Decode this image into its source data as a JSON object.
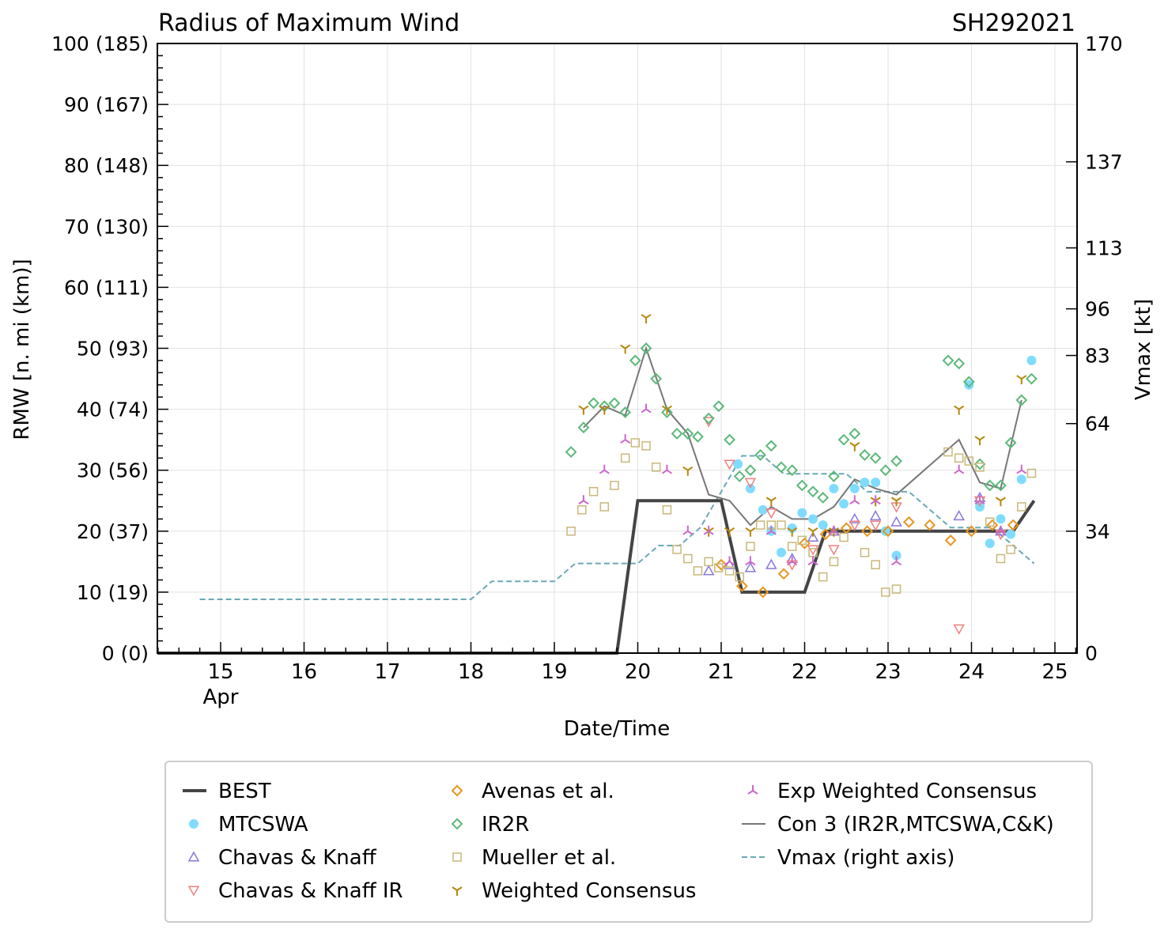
{
  "chart_data": {
    "type": "scatter",
    "title": "Radius of Maximum Wind",
    "storm_id": "SH292021",
    "xlabel": "Date/Time",
    "ylabel": "RMW [n. mi (km)]",
    "y2label": "Vmax [kt]",
    "xlim": [
      14.25,
      25.3
    ],
    "ylim": [
      0,
      100
    ],
    "xticks": [
      15,
      16,
      17,
      18,
      19,
      20,
      21,
      22,
      23,
      24,
      25
    ],
    "xtick_labels": [
      "15",
      "16",
      "17",
      "18",
      "19",
      "20",
      "21",
      "22",
      "23",
      "24",
      "25"
    ],
    "month_label": "Apr",
    "yticks": [
      0,
      10,
      20,
      30,
      40,
      50,
      60,
      70,
      80,
      90,
      100
    ],
    "ytick_labels": [
      "0 (0)",
      "10 (19)",
      "20 (37)",
      "30 (56)",
      "40 (74)",
      "50 (93)",
      "60 (111)",
      "70 (130)",
      "80 (148)",
      "90 (167)",
      "100 (185)"
    ],
    "y2lim": [
      0,
      170
    ],
    "y2ticks": [
      0,
      34,
      64,
      83,
      96,
      113,
      137,
      170
    ],
    "grid": true,
    "legend_position": "bottom",
    "series": [
      {
        "name": "BEST",
        "style": "line",
        "color": "#444444",
        "x": [
          14.0,
          19.75,
          20.0,
          21.0,
          21.25,
          22.0,
          22.25,
          24.5,
          24.75
        ],
        "y": [
          0,
          0,
          25,
          25,
          10,
          10,
          20,
          20,
          25
        ]
      },
      {
        "name": "MTCSWA",
        "style": "dot",
        "color": "#7fdcff",
        "x": [
          21.2,
          21.35,
          21.5,
          21.6,
          21.72,
          21.85,
          21.97,
          22.1,
          22.22,
          22.35,
          22.47,
          22.6,
          22.72,
          22.85,
          22.97,
          23.1,
          23.97,
          24.1,
          24.22,
          24.35,
          24.47,
          24.6,
          24.72
        ],
        "y": [
          31,
          27,
          23.5,
          20,
          16.5,
          20.5,
          23,
          22,
          21,
          27,
          24.5,
          27,
          28,
          28,
          20,
          16,
          44,
          24,
          18,
          22,
          19.5,
          28.5,
          48
        ]
      },
      {
        "name": "Chavas & Knaff",
        "style": "triangle-up",
        "color": "#8877dd",
        "x": [
          20.85,
          21.1,
          21.35,
          21.6,
          21.85,
          22.1,
          22.35,
          22.6,
          22.85,
          23.1,
          23.85,
          24.1,
          24.35
        ],
        "y": [
          13.5,
          14.5,
          14,
          14.5,
          15.5,
          19,
          20,
          22,
          22.5,
          21.5,
          22.5,
          25.5,
          20
        ]
      },
      {
        "name": "Chavas & Knaff IR",
        "style": "triangle-down",
        "color": "#f08080",
        "x": [
          20.85,
          21.1,
          21.35,
          21.6,
          21.85,
          22.1,
          22.35,
          22.6,
          22.85,
          23.1,
          23.85,
          24.1,
          24.35
        ],
        "y": [
          38,
          31,
          28,
          23,
          14.5,
          17,
          17,
          21,
          21,
          24,
          4,
          25,
          19.5
        ]
      },
      {
        "name": "Avenas et al.",
        "style": "diamond",
        "color": "#e8961e",
        "x": [
          21.0,
          21.25,
          21.5,
          21.75,
          22.0,
          22.25,
          22.5,
          22.75,
          23.0,
          23.25,
          23.5,
          23.75,
          24.0,
          24.25,
          24.5
        ],
        "y": [
          14.5,
          11,
          10,
          13,
          18,
          19.5,
          20.5,
          20,
          20,
          21.5,
          21,
          18.5,
          20,
          21,
          21
        ]
      },
      {
        "name": "IR2R",
        "style": "diamond",
        "color": "#5cb87a",
        "x": [
          19.2,
          19.35,
          19.47,
          19.6,
          19.72,
          19.85,
          19.97,
          20.1,
          20.22,
          20.35,
          20.47,
          20.6,
          20.72,
          20.85,
          20.97,
          21.1,
          21.22,
          21.35,
          21.47,
          21.6,
          21.72,
          21.85,
          21.97,
          22.1,
          22.22,
          22.35,
          22.47,
          22.6,
          22.72,
          22.85,
          22.97,
          23.1,
          23.72,
          23.85,
          23.97,
          24.1,
          24.22,
          24.35,
          24.47,
          24.6,
          24.72
        ],
        "y": [
          33,
          37,
          41,
          40.5,
          41,
          39.5,
          48,
          50,
          45,
          39.5,
          36,
          36,
          35.5,
          38.5,
          40.5,
          35,
          29,
          30,
          32.5,
          34,
          30.5,
          30,
          27.5,
          26.5,
          25.5,
          29,
          35,
          36,
          32.5,
          32,
          30,
          31.5,
          48,
          47.5,
          44.5,
          31,
          27.5,
          27.5,
          34.5,
          41.5,
          45
        ]
      },
      {
        "name": "Mueller et al.",
        "style": "square",
        "color": "#c8b87a",
        "x": [
          19.2,
          19.33,
          19.47,
          19.6,
          19.72,
          19.85,
          19.97,
          20.1,
          20.22,
          20.35,
          20.47,
          20.6,
          20.72,
          20.85,
          20.97,
          21.1,
          21.22,
          21.35,
          21.47,
          21.6,
          21.72,
          21.85,
          21.97,
          22.1,
          22.22,
          22.35,
          22.47,
          22.72,
          22.85,
          22.97,
          23.1,
          23.72,
          23.85,
          23.97,
          24.1,
          24.22,
          24.35,
          24.47,
          24.6,
          24.72
        ],
        "y": [
          20,
          23.5,
          26.5,
          24,
          27.5,
          32,
          34.5,
          34,
          30.5,
          23.5,
          17,
          15.5,
          13.5,
          15,
          14,
          13.5,
          12.5,
          17.5,
          21,
          21,
          21,
          17.5,
          18.5,
          16.5,
          12.5,
          15,
          19,
          16.5,
          14.5,
          10,
          10.5,
          33,
          32,
          31.5,
          30.5,
          21.5,
          15.5,
          17,
          24,
          29.5
        ]
      },
      {
        "name": "Weighted Consensus",
        "style": "tri-down",
        "color": "#b8860b",
        "x": [
          19.35,
          19.6,
          19.85,
          20.1,
          20.35,
          20.6,
          20.85,
          21.1,
          21.35,
          21.6,
          21.85,
          22.1,
          22.35,
          22.6,
          22.85,
          23.1,
          23.85,
          24.1,
          24.35,
          24.6
        ],
        "y": [
          40,
          40,
          50,
          55,
          40,
          30,
          20,
          20,
          20,
          25,
          20,
          20,
          20,
          34,
          25,
          25,
          40,
          35,
          25,
          45
        ]
      },
      {
        "name": "Exp Weighted Consensus",
        "style": "tri-up",
        "color": "#cc66cc",
        "x": [
          19.35,
          19.6,
          19.85,
          20.1,
          20.35,
          20.6,
          20.85,
          21.1,
          21.35,
          21.6,
          21.85,
          22.1,
          22.35,
          22.6,
          22.85,
          23.1,
          23.85,
          24.1,
          24.35,
          24.6
        ],
        "y": [
          25,
          30,
          35,
          40,
          30,
          20,
          20,
          15,
          15,
          20,
          15,
          15,
          20,
          25,
          25,
          15,
          30,
          25,
          20,
          30
        ]
      },
      {
        "name": "Con 3 (IR2R,MTCSWA,C&K)",
        "style": "line",
        "color": "#777777",
        "x": [
          19.35,
          19.6,
          19.85,
          20.1,
          20.35,
          20.6,
          20.85,
          21.1,
          21.35,
          21.6,
          21.85,
          22.1,
          22.35,
          22.6,
          22.85,
          23.1,
          23.85,
          24.1,
          24.35,
          24.6
        ],
        "y": [
          37,
          40.5,
          39,
          50,
          40,
          36,
          26,
          25,
          21,
          24,
          22,
          22,
          24,
          28.5,
          27,
          26,
          35,
          28,
          27,
          41.5
        ]
      },
      {
        "name": "Vmax (right axis)",
        "style": "dashed",
        "color": "#6aa8b8",
        "x": [
          14.75,
          18.0,
          18.25,
          19.0,
          19.25,
          20.0,
          20.25,
          20.5,
          20.75,
          21.0,
          21.25,
          21.5,
          21.75,
          22.0,
          22.25,
          22.5,
          22.75,
          23.0,
          23.25,
          23.5,
          23.75,
          24.0,
          24.25,
          24.5,
          24.75
        ],
        "y": [
          15,
          15,
          20,
          20,
          25,
          25,
          30,
          30,
          35,
          45,
          55,
          55,
          50,
          50,
          50,
          50,
          45,
          45,
          45,
          40,
          35,
          35,
          35,
          30,
          25
        ]
      }
    ]
  }
}
